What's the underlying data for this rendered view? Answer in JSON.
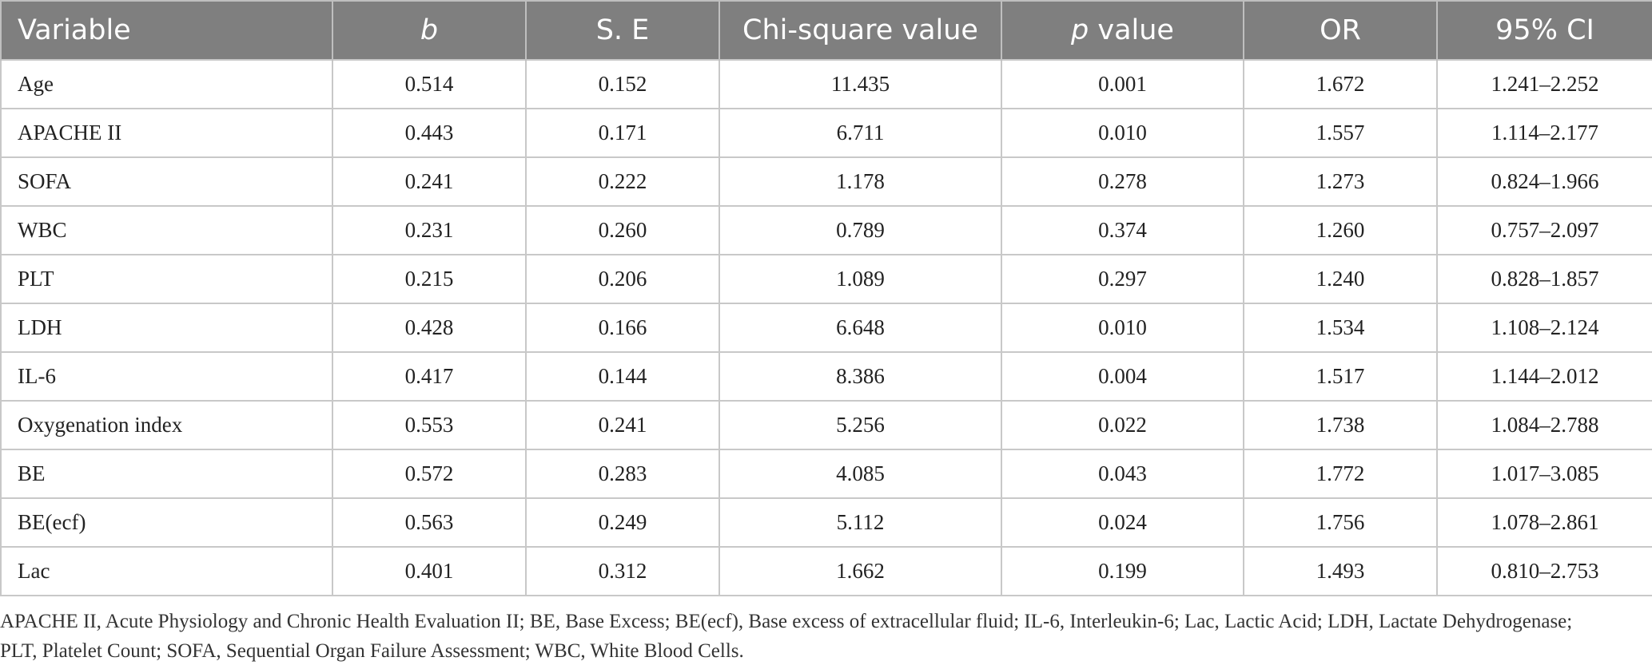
{
  "table": {
    "headers": [
      {
        "pre": "Variable",
        "ital": "",
        "post": ""
      },
      {
        "pre": "",
        "ital": "b",
        "post": ""
      },
      {
        "pre": "S. E",
        "ital": "",
        "post": ""
      },
      {
        "pre": "Chi-square value",
        "ital": "",
        "post": ""
      },
      {
        "pre": "",
        "ital": "p",
        "post": " value"
      },
      {
        "pre": "OR",
        "ital": "",
        "post": ""
      },
      {
        "pre": "95% CI",
        "ital": "",
        "post": ""
      }
    ],
    "rows": [
      {
        "variable": "Age",
        "b": "0.514",
        "se": "0.152",
        "chi": "11.435",
        "p": "0.001",
        "or": "1.672",
        "ci": "1.241–2.252"
      },
      {
        "variable": "APACHE II",
        "b": "0.443",
        "se": "0.171",
        "chi": "6.711",
        "p": "0.010",
        "or": "1.557",
        "ci": "1.114–2.177"
      },
      {
        "variable": "SOFA",
        "b": "0.241",
        "se": "0.222",
        "chi": "1.178",
        "p": "0.278",
        "or": "1.273",
        "ci": "0.824–1.966"
      },
      {
        "variable": "WBC",
        "b": "0.231",
        "se": "0.260",
        "chi": "0.789",
        "p": "0.374",
        "or": "1.260",
        "ci": "0.757–2.097"
      },
      {
        "variable": "PLT",
        "b": "0.215",
        "se": "0.206",
        "chi": "1.089",
        "p": "0.297",
        "or": "1.240",
        "ci": "0.828–1.857"
      },
      {
        "variable": "LDH",
        "b": "0.428",
        "se": "0.166",
        "chi": "6.648",
        "p": "0.010",
        "or": "1.534",
        "ci": "1.108–2.124"
      },
      {
        "variable": "IL-6",
        "b": "0.417",
        "se": "0.144",
        "chi": "8.386",
        "p": "0.004",
        "or": "1.517",
        "ci": "1.144–2.012"
      },
      {
        "variable": "Oxygenation index",
        "b": "0.553",
        "se": "0.241",
        "chi": "5.256",
        "p": "0.022",
        "or": "1.738",
        "ci": "1.084–2.788"
      },
      {
        "variable": "BE",
        "b": "0.572",
        "se": "0.283",
        "chi": "4.085",
        "p": "0.043",
        "or": "1.772",
        "ci": "1.017–3.085"
      },
      {
        "variable": "BE(ecf)",
        "b": "0.563",
        "se": "0.249",
        "chi": "5.112",
        "p": "0.024",
        "or": "1.756",
        "ci": "1.078–2.861"
      },
      {
        "variable": "Lac",
        "b": "0.401",
        "se": "0.312",
        "chi": "1.662",
        "p": "0.199",
        "or": "1.493",
        "ci": "0.810–2.753"
      }
    ]
  },
  "footnote": "APACHE II, Acute Physiology and Chronic Health Evaluation II; BE, Base Excess; BE(ecf), Base excess of extracellular fluid; IL-6, Interleukin-6; Lac, Lactic Acid; LDH, Lactate Dehydrogenase; PLT, Platelet Count; SOFA, Sequential Organ Failure Assessment; WBC, White Blood Cells.",
  "colors": {
    "header_bg": "#7f7f7f",
    "header_text": "#ffffff",
    "grid": "#c8c8c8"
  }
}
